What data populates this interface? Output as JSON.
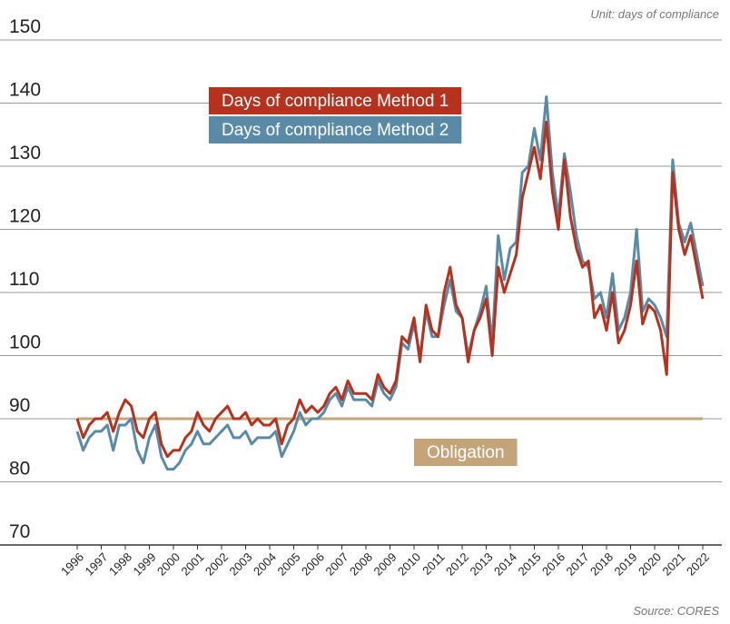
{
  "chart_data": {
    "type": "line",
    "unit_note": "Unit: days of compliance",
    "source": "Source: CORES",
    "x": [
      1996,
      1996.25,
      1996.5,
      1996.75,
      1997,
      1997.25,
      1997.5,
      1997.75,
      1998,
      1998.25,
      1998.5,
      1998.75,
      1999,
      1999.25,
      1999.5,
      1999.75,
      2000,
      2000.25,
      2000.5,
      2000.75,
      2001,
      2001.25,
      2001.5,
      2001.75,
      2002,
      2002.25,
      2002.5,
      2002.75,
      2003,
      2003.25,
      2003.5,
      2003.75,
      2004,
      2004.25,
      2004.5,
      2004.75,
      2005,
      2005.25,
      2005.5,
      2005.75,
      2006,
      2006.25,
      2006.5,
      2006.75,
      2007,
      2007.25,
      2007.5,
      2007.75,
      2008,
      2008.25,
      2008.5,
      2008.75,
      2009,
      2009.25,
      2009.5,
      2009.75,
      2010,
      2010.25,
      2010.5,
      2010.75,
      2011,
      2011.25,
      2011.5,
      2011.75,
      2012,
      2012.25,
      2012.5,
      2012.75,
      2013,
      2013.25,
      2013.5,
      2013.75,
      2014,
      2014.25,
      2014.5,
      2014.75,
      2015,
      2015.25,
      2015.5,
      2015.75,
      2016,
      2016.25,
      2016.5,
      2016.75,
      2017,
      2017.25,
      2017.5,
      2017.75,
      2018,
      2018.25,
      2018.5,
      2018.75,
      2019,
      2019.25,
      2019.5,
      2019.75,
      2020,
      2020.25,
      2020.5,
      2020.75,
      2021,
      2021.25,
      2021.5,
      2021.75,
      2022
    ],
    "series": [
      {
        "name": "Days of compliance Method 2",
        "color": "#5b8aa6",
        "values": [
          88,
          85,
          87,
          88,
          88,
          89,
          85,
          89,
          89,
          90,
          85,
          83,
          87,
          89,
          84,
          82,
          82,
          83,
          85,
          86,
          88,
          86,
          86,
          87,
          88,
          89,
          87,
          87,
          88,
          86,
          87,
          87,
          87,
          88,
          84,
          86,
          88,
          91,
          89,
          90,
          90,
          91,
          93,
          94,
          92,
          95,
          93,
          93,
          93,
          92,
          96,
          94,
          93,
          95,
          102,
          101,
          105,
          100,
          107,
          103,
          103,
          108,
          112,
          107,
          106,
          100,
          104,
          107,
          111,
          102,
          119,
          112,
          117,
          118,
          129,
          130,
          136,
          131,
          141,
          129,
          122,
          132,
          126,
          119,
          115,
          114,
          109,
          110,
          106,
          113,
          104,
          106,
          110,
          120,
          107,
          109,
          108,
          106,
          103,
          131,
          121,
          118,
          121,
          116,
          111
        ]
      },
      {
        "name": "Days of compliance Method 1",
        "color": "#b5321f",
        "values": [
          90,
          87,
          89,
          90,
          90,
          91,
          88,
          91,
          93,
          92,
          88,
          87,
          90,
          91,
          86,
          84,
          85,
          85,
          87,
          88,
          91,
          89,
          88,
          90,
          91,
          92,
          90,
          90,
          91,
          89,
          90,
          89,
          89,
          90,
          86,
          89,
          90,
          93,
          91,
          92,
          91,
          92,
          94,
          95,
          93,
          96,
          94,
          94,
          94,
          93,
          97,
          95,
          94,
          96,
          103,
          102,
          106,
          99,
          108,
          104,
          103,
          110,
          114,
          108,
          106,
          99,
          104,
          106,
          109,
          100,
          114,
          110,
          113,
          116,
          125,
          129,
          133,
          128,
          137,
          126,
          120,
          131,
          122,
          117,
          114,
          115,
          106,
          108,
          104,
          110,
          102,
          104,
          108,
          115,
          105,
          108,
          107,
          104,
          97,
          129,
          120,
          116,
          119,
          114,
          109
        ]
      }
    ],
    "obligation": {
      "name": "Obligation",
      "value": 90,
      "color": "#c4a57a"
    },
    "xlim": [
      1996,
      2022
    ],
    "xticks": [
      1996,
      1997,
      1998,
      1999,
      2000,
      2001,
      2002,
      2003,
      2004,
      2005,
      2006,
      2007,
      2008,
      2009,
      2010,
      2011,
      2012,
      2013,
      2014,
      2015,
      2016,
      2017,
      2018,
      2019,
      2020,
      2021,
      2022
    ],
    "ylim": [
      70,
      150
    ],
    "yticks": [
      70,
      80,
      90,
      100,
      110,
      120,
      130,
      140,
      150
    ],
    "grid": true
  }
}
